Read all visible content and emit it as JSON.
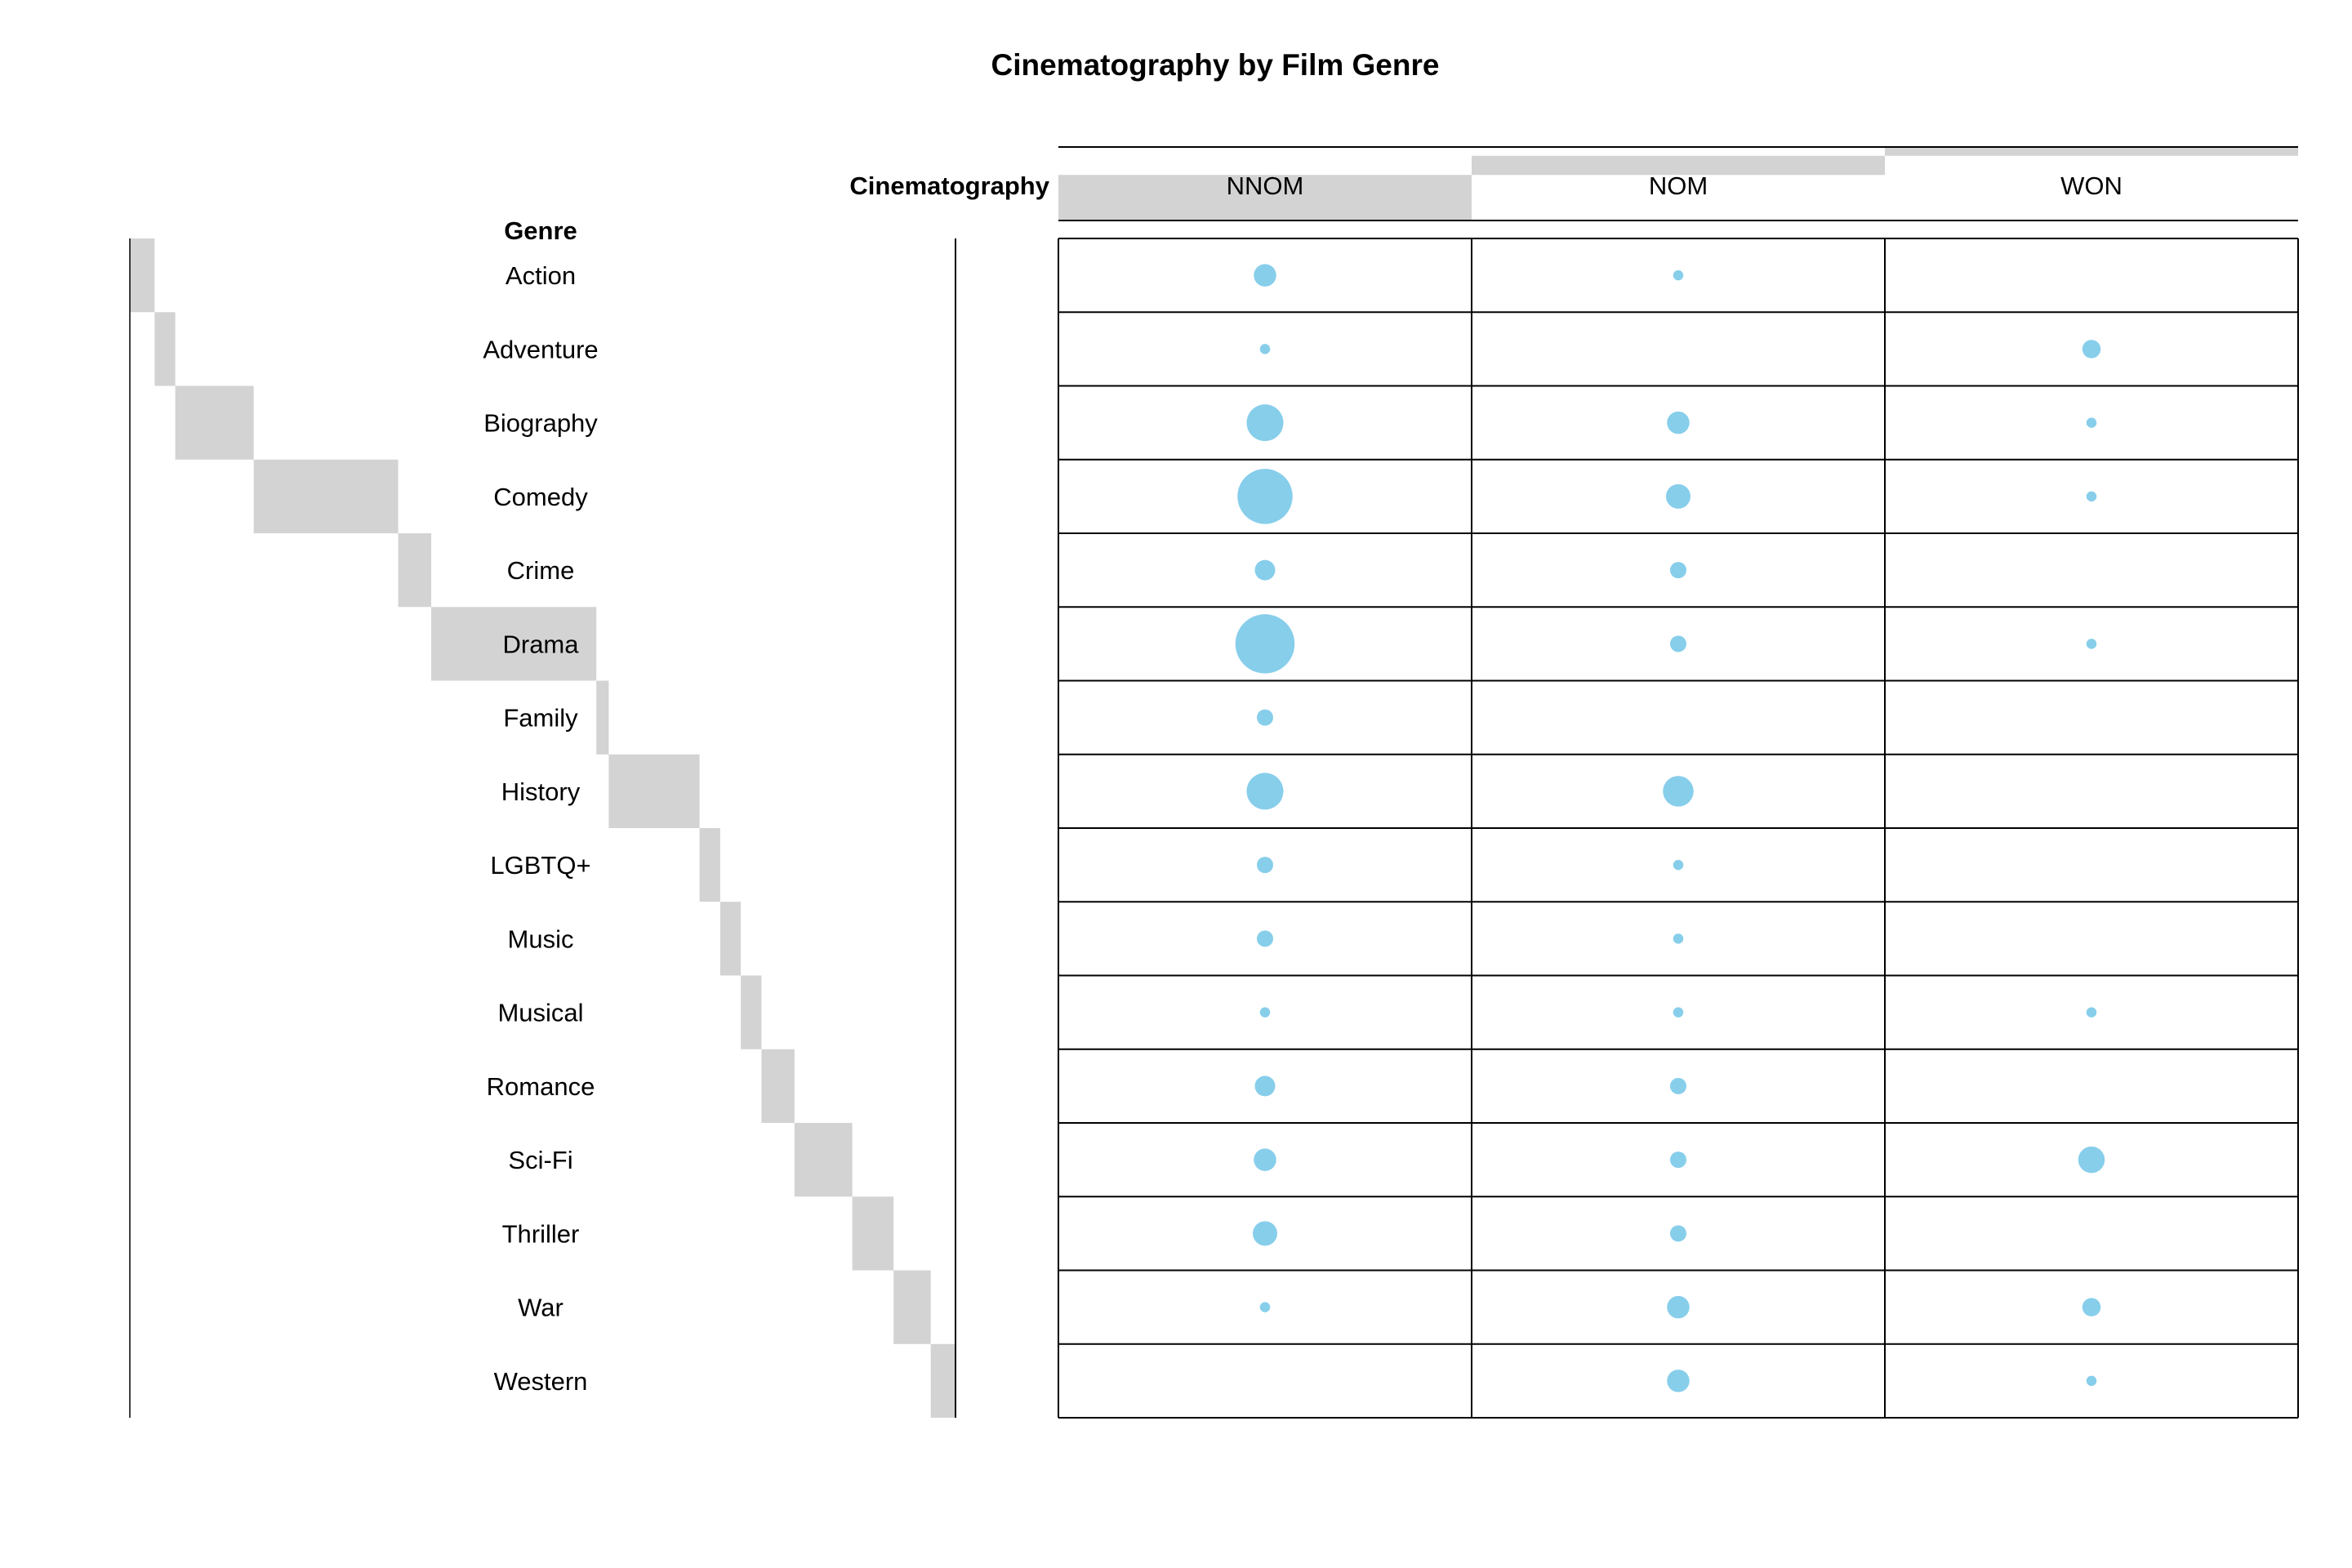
{
  "chart_data": {
    "type": "table",
    "title": "Cinematography by Film Genre",
    "row_variable": "Genre",
    "column_variable": "Cinematography",
    "rows": [
      "Action",
      "Adventure",
      "Biography",
      "Comedy",
      "Crime",
      "Drama",
      "Family",
      "History",
      "LGBTQ+",
      "Music",
      "Musical",
      "Romance",
      "Sci-Fi",
      "Thriller",
      "War",
      "Western"
    ],
    "columns": [
      "NNOM",
      "NOM",
      "WON"
    ],
    "row_marginal_share": [
      0.03,
      0.025,
      0.095,
      0.175,
      0.04,
      0.2,
      0.015,
      0.11,
      0.025,
      0.025,
      0.025,
      0.04,
      0.07,
      0.05,
      0.045,
      0.03
    ],
    "column_marginal_share": [
      0.62,
      0.26,
      0.12
    ],
    "cell_relative_size": [
      [
        0.55,
        0.25,
        0
      ],
      [
        0.25,
        0,
        0.45
      ],
      [
        0.9,
        0.55,
        0.25
      ],
      [
        1.35,
        0.6,
        0.25
      ],
      [
        0.5,
        0.4,
        0
      ],
      [
        1.45,
        0.4,
        0.25
      ],
      [
        0.4,
        0,
        0
      ],
      [
        0.9,
        0.75,
        0
      ],
      [
        0.4,
        0.25,
        0
      ],
      [
        0.4,
        0.25,
        0
      ],
      [
        0.25,
        0.25,
        0.25
      ],
      [
        0.5,
        0.4,
        0
      ],
      [
        0.55,
        0.4,
        0.65
      ],
      [
        0.6,
        0.4,
        0
      ],
      [
        0.25,
        0.55,
        0.45
      ],
      [
        0,
        0.55,
        0.25
      ]
    ],
    "marker_color": "#87ceeb",
    "marginal_bar_color": "#d3d3d3",
    "grid": true
  }
}
